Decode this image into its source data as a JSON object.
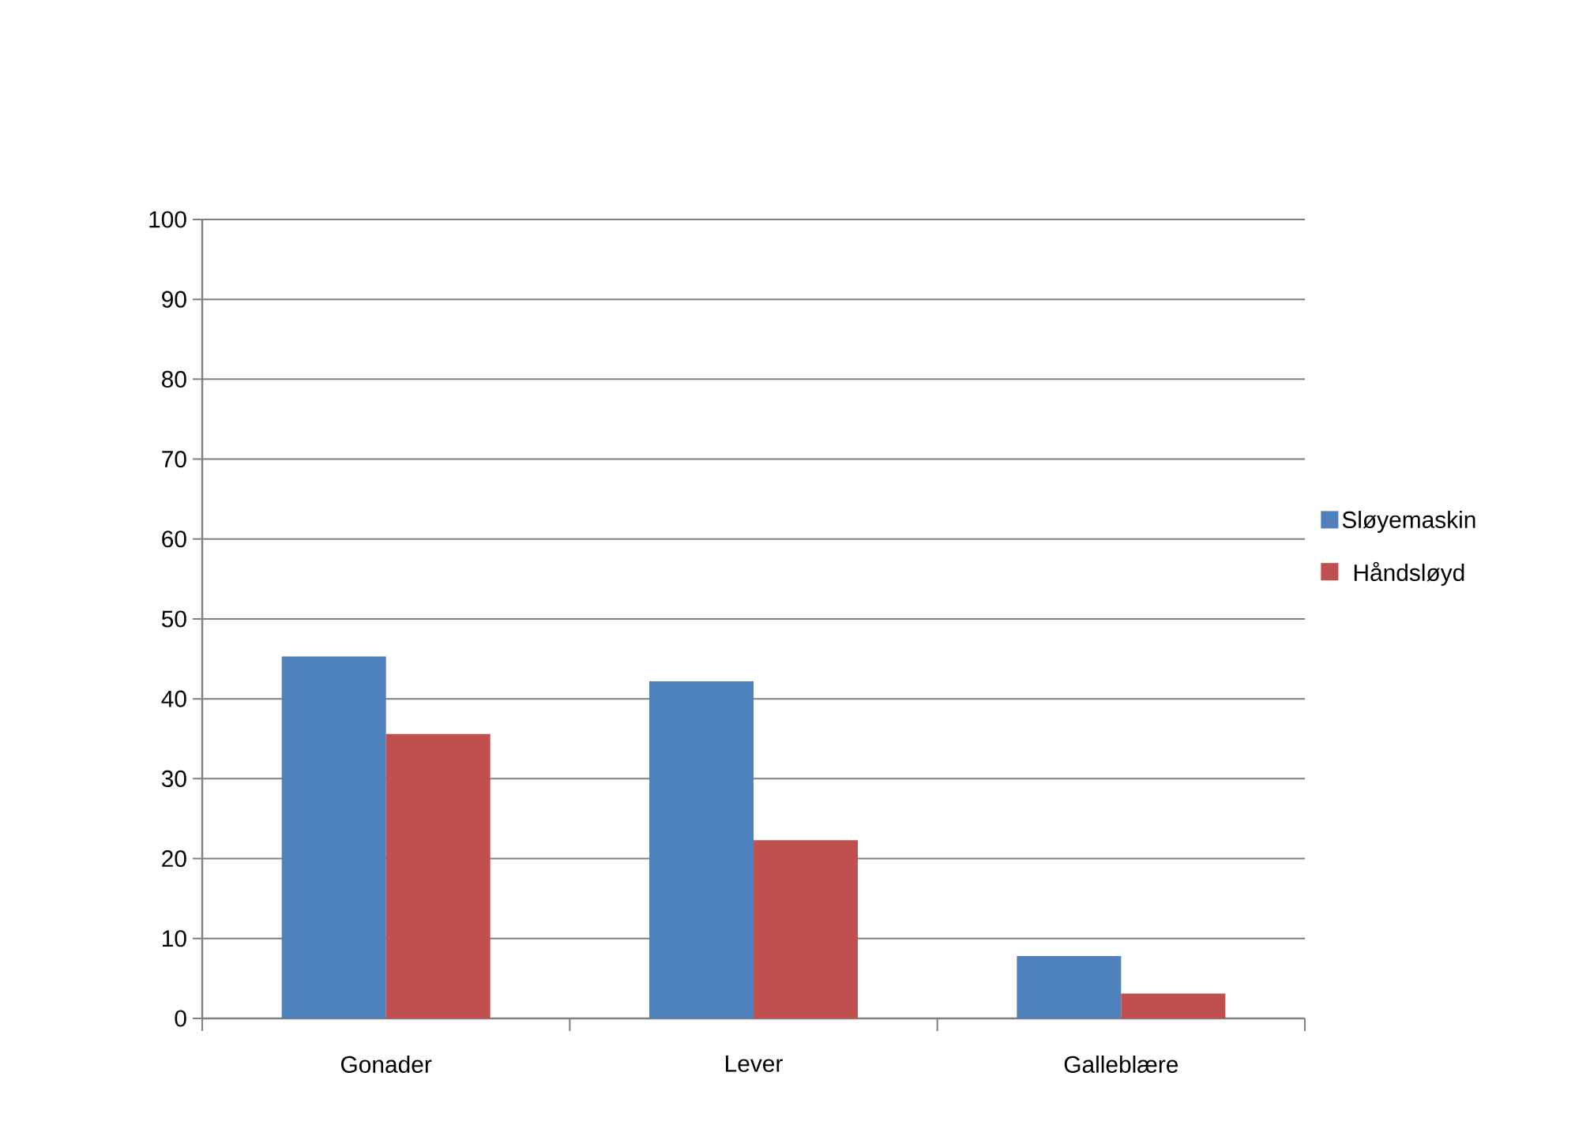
{
  "chart_data": {
    "type": "bar",
    "categories": [
      "Gonader",
      "Lever",
      "Galleblære"
    ],
    "series": [
      {
        "name": "Sløyemaskin",
        "color": "#4f81bd",
        "values": [
          45.3,
          42.2,
          7.8
        ]
      },
      {
        "name": "Håndsløyd",
        "color": "#c0504d",
        "values": [
          35.6,
          22.3,
          3.1
        ]
      }
    ],
    "ylim": [
      0,
      100
    ],
    "yticks": [
      0,
      10,
      20,
      30,
      40,
      50,
      60,
      70,
      80,
      90,
      100
    ],
    "grid": "y",
    "legend": "right"
  }
}
